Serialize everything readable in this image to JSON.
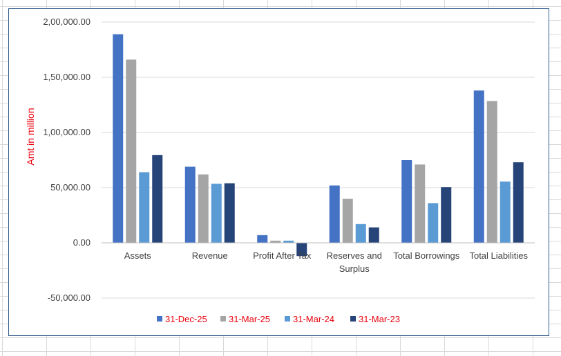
{
  "chart_data": {
    "type": "bar",
    "ylabel": "Amt in million",
    "ylim": [
      -50000,
      200000
    ],
    "yticks": [
      -50000,
      0,
      50000,
      100000,
      150000,
      200000
    ],
    "ytick_labels": [
      "-50,000.00",
      "0.00",
      "50,000.00",
      "1,00,000.00",
      "1,50,000.00",
      "2,00,000.00"
    ],
    "categories": [
      "Assets",
      "Revenue",
      "Profit After Tax",
      "Reserves and Surplus",
      "Total Borrowings",
      "Total Liabilities"
    ],
    "category_lines": [
      [
        "Assets"
      ],
      [
        "Revenue"
      ],
      [
        "Profit After Tax"
      ],
      [
        "Reserves and",
        "Surplus"
      ],
      [
        "Total Borrowings"
      ],
      [
        "Total Liabilities"
      ]
    ],
    "grid": true,
    "legend_position": "bottom",
    "series": [
      {
        "name": "31-Dec-25",
        "color": "#4472c4",
        "values": [
          189000,
          69000,
          7000,
          52000,
          75000,
          138000
        ]
      },
      {
        "name": "31-Mar-25",
        "color": "#a5a5a5",
        "values": [
          166000,
          62000,
          2000,
          40000,
          71000,
          128500
        ]
      },
      {
        "name": "31-Mar-24",
        "color": "#5b9bd5",
        "values": [
          64000,
          53500,
          2000,
          17000,
          36000,
          55500
        ]
      },
      {
        "name": "31-Mar-23",
        "color": "#264478",
        "values": [
          79500,
          54000,
          -12000,
          14000,
          50500,
          73000
        ]
      }
    ]
  }
}
